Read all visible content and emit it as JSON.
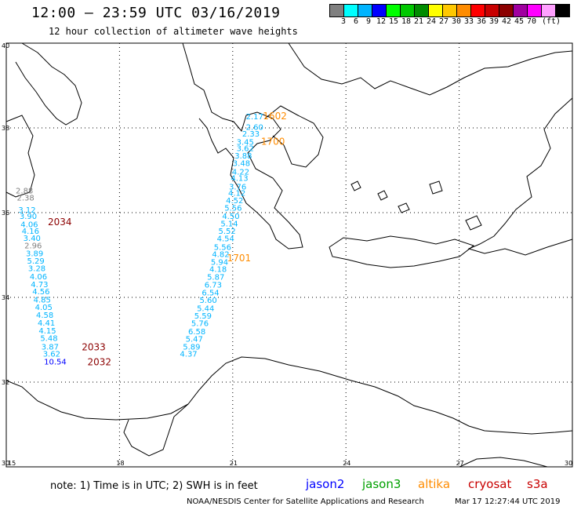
{
  "header": {
    "title": "12:00 – 23:59 UTC 03/16/2019",
    "subtitle": "12 hour collection of altimeter wave heights"
  },
  "scale": {
    "unit": "(ft)",
    "labels": [
      "3",
      "6",
      "9",
      "12",
      "15",
      "18",
      "21",
      "24",
      "27",
      "30",
      "33",
      "36",
      "39",
      "42",
      "45",
      "70"
    ],
    "colors": [
      "#808080",
      "#00ffff",
      "#00b4ff",
      "#0000ff",
      "#00ff00",
      "#00c800",
      "#008c00",
      "#ffff00",
      "#ffc800",
      "#ff8c00",
      "#ff0000",
      "#c80000",
      "#8c0000",
      "#a000a0",
      "#ff00ff",
      "#ffa0ff",
      "#000000"
    ]
  },
  "map": {
    "lat_range": [
      30,
      40
    ],
    "lon_range": [
      15,
      30
    ],
    "lat_ticks": [
      "30",
      "32",
      "34",
      "36",
      "38",
      "40"
    ],
    "lon_ticks": [
      "15",
      "18",
      "21",
      "24",
      "27",
      "30"
    ],
    "tracks": [
      {
        "label": "2034",
        "label_color": "#8c0000",
        "label_pos": {
          "lon": 16.1,
          "lat": 35.7
        },
        "points": [
          {
            "lon": 15.25,
            "lat": 36.45,
            "v": "2.88",
            "color": "#808080"
          },
          {
            "lon": 15.28,
            "lat": 36.29,
            "v": "2.38",
            "color": "#808080"
          },
          {
            "lon": 15.32,
            "lat": 36.0,
            "v": "3.12",
            "color": "#00b4ff"
          },
          {
            "lon": 15.35,
            "lat": 35.85,
            "v": "3.90",
            "color": "#00b4ff"
          },
          {
            "lon": 15.38,
            "lat": 35.66,
            "v": "4.06",
            "color": "#00b4ff"
          },
          {
            "lon": 15.41,
            "lat": 35.5,
            "v": "4.16",
            "color": "#00b4ff"
          },
          {
            "lon": 15.45,
            "lat": 35.33,
            "v": "3.40",
            "color": "#00b4ff"
          },
          {
            "lon": 15.48,
            "lat": 35.16,
            "v": "2.96",
            "color": "#808080"
          },
          {
            "lon": 15.52,
            "lat": 34.97,
            "v": "3.89",
            "color": "#00b4ff"
          },
          {
            "lon": 15.55,
            "lat": 34.8,
            "v": "5.29",
            "color": "#00b4ff"
          },
          {
            "lon": 15.58,
            "lat": 34.62,
            "v": "3.28",
            "color": "#00b4ff"
          },
          {
            "lon": 15.62,
            "lat": 34.43,
            "v": "4.06",
            "color": "#00b4ff"
          },
          {
            "lon": 15.65,
            "lat": 34.24,
            "v": "4.73",
            "color": "#00b4ff"
          },
          {
            "lon": 15.69,
            "lat": 34.07,
            "v": "4.56",
            "color": "#00b4ff"
          },
          {
            "lon": 15.72,
            "lat": 33.88,
            "v": "4.85",
            "color": "#00b4ff"
          },
          {
            "lon": 15.76,
            "lat": 33.7,
            "v": "4.05",
            "color": "#00b4ff"
          },
          {
            "lon": 15.79,
            "lat": 33.52,
            "v": "4.58",
            "color": "#00b4ff"
          },
          {
            "lon": 15.83,
            "lat": 33.33,
            "v": "4.41",
            "color": "#00b4ff"
          },
          {
            "lon": 15.86,
            "lat": 33.15,
            "v": "4.15",
            "color": "#00b4ff"
          },
          {
            "lon": 15.9,
            "lat": 32.97,
            "v": "5.48",
            "color": "#00b4ff"
          },
          {
            "lon": 15.93,
            "lat": 32.77,
            "v": "3.87",
            "color": "#00b4ff"
          }
        ]
      },
      {
        "label": "2033",
        "label_color": "#8c0000",
        "label_pos": {
          "lon": 17.0,
          "lat": 32.75
        },
        "points": [
          {
            "lon": 15.97,
            "lat": 32.6,
            "v": "3.62",
            "color": "#00b4ff"
          }
        ]
      },
      {
        "label": "2032",
        "label_color": "#8c0000",
        "label_pos": {
          "lon": 17.15,
          "lat": 32.4
        },
        "points": [
          {
            "lon": 16.0,
            "lat": 32.42,
            "v": "10.54",
            "color": "#0000ff"
          }
        ]
      },
      {
        "label": "1602",
        "label_color": "#ff8c00",
        "label_pos": {
          "lon": 21.8,
          "lat": 38.2
        },
        "points": [
          {
            "lon": 21.35,
            "lat": 38.2,
            "v": "2.17",
            "color": "#00b4ff"
          },
          {
            "lon": 21.35,
            "lat": 37.95,
            "v": "2.60",
            "color": "#00b4ff"
          },
          {
            "lon": 21.25,
            "lat": 37.8,
            "v": "2.33",
            "color": "#00b4ff"
          }
        ]
      },
      {
        "label": "1700",
        "label_color": "#ff8c00",
        "label_pos": {
          "lon": 21.75,
          "lat": 37.6
        },
        "points": [
          {
            "lon": 21.1,
            "lat": 37.6,
            "v": "3.45",
            "color": "#00b4ff"
          },
          {
            "lon": 21.1,
            "lat": 37.45,
            "v": "3.62",
            "color": "#00b4ff"
          },
          {
            "lon": 21.05,
            "lat": 37.28,
            "v": "3.88",
            "color": "#00b4ff"
          },
          {
            "lon": 21.0,
            "lat": 37.1,
            "v": "3.48",
            "color": "#00b4ff"
          },
          {
            "lon": 20.98,
            "lat": 36.9,
            "v": "4.22",
            "color": "#00b4ff"
          },
          {
            "lon": 20.95,
            "lat": 36.75,
            "v": "4.13",
            "color": "#00b4ff"
          },
          {
            "lon": 20.9,
            "lat": 36.55,
            "v": "3.76",
            "color": "#00b4ff"
          },
          {
            "lon": 20.88,
            "lat": 36.4,
            "v": "4.12",
            "color": "#00b4ff"
          },
          {
            "lon": 20.82,
            "lat": 36.22,
            "v": "4.52",
            "color": "#00b4ff"
          },
          {
            "lon": 20.78,
            "lat": 36.05,
            "v": "5.56",
            "color": "#00b4ff"
          },
          {
            "lon": 20.72,
            "lat": 35.85,
            "v": "4.50",
            "color": "#00b4ff"
          },
          {
            "lon": 20.68,
            "lat": 35.68,
            "v": "5.14",
            "color": "#00b4ff"
          },
          {
            "lon": 20.62,
            "lat": 35.5,
            "v": "5.52",
            "color": "#00b4ff"
          },
          {
            "lon": 20.58,
            "lat": 35.32,
            "v": "4.54",
            "color": "#00b4ff"
          },
          {
            "lon": 20.5,
            "lat": 35.12,
            "v": "5.56",
            "color": "#00b4ff"
          }
        ]
      },
      {
        "label": "1701",
        "label_color": "#ff8c00",
        "label_pos": {
          "lon": 20.85,
          "lat": 34.85
        },
        "points": [
          {
            "lon": 20.45,
            "lat": 34.95,
            "v": "4.82",
            "color": "#00b4ff"
          },
          {
            "lon": 20.42,
            "lat": 34.77,
            "v": "5.94",
            "color": "#00b4ff"
          },
          {
            "lon": 20.38,
            "lat": 34.6,
            "v": "4.18",
            "color": "#00b4ff"
          },
          {
            "lon": 20.32,
            "lat": 34.42,
            "v": "5.87",
            "color": "#00b4ff"
          },
          {
            "lon": 20.25,
            "lat": 34.23,
            "v": "6.73",
            "color": "#00b4ff"
          },
          {
            "lon": 20.18,
            "lat": 34.05,
            "v": "6.54",
            "color": "#00b4ff"
          },
          {
            "lon": 20.12,
            "lat": 33.87,
            "v": "5.60",
            "color": "#00b4ff"
          },
          {
            "lon": 20.05,
            "lat": 33.68,
            "v": "5.44",
            "color": "#00b4ff"
          },
          {
            "lon": 19.98,
            "lat": 33.5,
            "v": "5.59",
            "color": "#00b4ff"
          },
          {
            "lon": 19.9,
            "lat": 33.32,
            "v": "5.76",
            "color": "#00b4ff"
          },
          {
            "lon": 19.82,
            "lat": 33.13,
            "v": "6.58",
            "color": "#00b4ff"
          },
          {
            "lon": 19.75,
            "lat": 32.95,
            "v": "5.47",
            "color": "#00b4ff"
          },
          {
            "lon": 19.68,
            "lat": 32.77,
            "v": "5.89",
            "color": "#00b4ff"
          },
          {
            "lon": 19.6,
            "lat": 32.6,
            "v": "4.37",
            "color": "#00b4ff"
          }
        ]
      }
    ]
  },
  "footer": {
    "note": "note: 1) Time is in UTC; 2) SWH is in feet",
    "satellites": [
      {
        "name": "jason2",
        "color": "#0000ff"
      },
      {
        "name": "jason3",
        "color": "#00a000"
      },
      {
        "name": "altika",
        "color": "#ff8c00"
      },
      {
        "name": "cryosat",
        "color": "#c80000"
      },
      {
        "name": "s3a",
        "color": "#c80000"
      }
    ],
    "credit": "NOAA/NESDIS Center for Satellite Applications and Research",
    "timestamp": "Mar 17 12:27:44 UTC 2019"
  }
}
